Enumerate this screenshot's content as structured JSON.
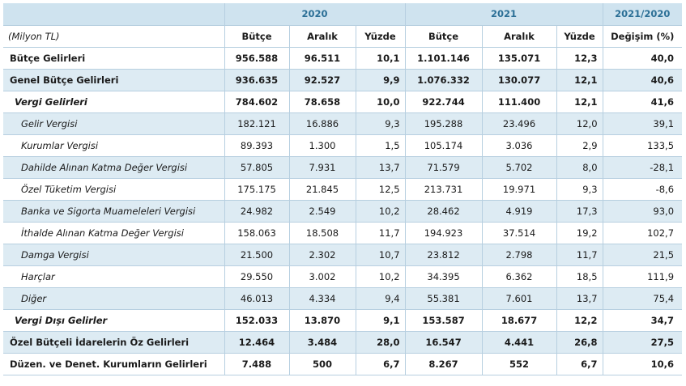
{
  "header": {
    "year_2020": "2020",
    "year_2021": "2021",
    "change_period": "2021/2020",
    "unit": "(Milyon TL)",
    "col_budget": "Bütçe",
    "col_december": "Aralık",
    "col_percent": "Yüzde",
    "col_change": "Değişim (%)"
  },
  "rows": [
    {
      "label": "Bütçe Gelirleri",
      "b20": "956.588",
      "a20": "96.511",
      "p20": "10,1",
      "b21": "1.101.146",
      "a21": "135.071",
      "p21": "12,3",
      "chg": "40,0"
    },
    {
      "label": "Genel Bütçe Gelirleri",
      "b20": "936.635",
      "a20": "92.527",
      "p20": "9,9",
      "b21": "1.076.332",
      "a21": "130.077",
      "p21": "12,1",
      "chg": "40,6"
    },
    {
      "label": "Vergi Gelirleri",
      "b20": "784.602",
      "a20": "78.658",
      "p20": "10,0",
      "b21": "922.744",
      "a21": "111.400",
      "p21": "12,1",
      "chg": "41,6"
    },
    {
      "label": "Gelir Vergisi",
      "b20": "182.121",
      "a20": "16.886",
      "p20": "9,3",
      "b21": "195.288",
      "a21": "23.496",
      "p21": "12,0",
      "chg": "39,1"
    },
    {
      "label": "Kurumlar Vergisi",
      "b20": "89.393",
      "a20": "1.300",
      "p20": "1,5",
      "b21": "105.174",
      "a21": "3.036",
      "p21": "2,9",
      "chg": "133,5"
    },
    {
      "label": "Dahilde Alınan Katma Değer Vergisi",
      "b20": "57.805",
      "a20": "7.931",
      "p20": "13,7",
      "b21": "71.579",
      "a21": "5.702",
      "p21": "8,0",
      "chg": "-28,1"
    },
    {
      "label": "Özel Tüketim Vergisi",
      "b20": "175.175",
      "a20": "21.845",
      "p20": "12,5",
      "b21": "213.731",
      "a21": "19.971",
      "p21": "9,3",
      "chg": "-8,6"
    },
    {
      "label": "Banka ve Sigorta Muameleleri Vergisi",
      "b20": "24.982",
      "a20": "2.549",
      "p20": "10,2",
      "b21": "28.462",
      "a21": "4.919",
      "p21": "17,3",
      "chg": "93,0"
    },
    {
      "label": "İthalde Alınan Katma Değer Vergisi",
      "b20": "158.063",
      "a20": "18.508",
      "p20": "11,7",
      "b21": "194.923",
      "a21": "37.514",
      "p21": "19,2",
      "chg": "102,7"
    },
    {
      "label": "Damga Vergisi",
      "b20": "21.500",
      "a20": "2.302",
      "p20": "10,7",
      "b21": "23.812",
      "a21": "2.798",
      "p21": "11,7",
      "chg": "21,5"
    },
    {
      "label": "Harçlar",
      "b20": "29.550",
      "a20": "3.002",
      "p20": "10,2",
      "b21": "34.395",
      "a21": "6.362",
      "p21": "18,5",
      "chg": "111,9"
    },
    {
      "label": "Diğer",
      "b20": "46.013",
      "a20": "4.334",
      "p20": "9,4",
      "b21": "55.381",
      "a21": "7.601",
      "p21": "13,7",
      "chg": "75,4"
    },
    {
      "label": "Vergi Dışı Gelirler",
      "b20": "152.033",
      "a20": "13.870",
      "p20": "9,1",
      "b21": "153.587",
      "a21": "18.677",
      "p21": "12,2",
      "chg": "34,7"
    },
    {
      "label": "Özel Bütçeli İdarelerin Öz Gelirleri",
      "b20": "12.464",
      "a20": "3.484",
      "p20": "28,0",
      "b21": "16.547",
      "a21": "4.441",
      "p21": "26,8",
      "chg": "27,5"
    },
    {
      "label": "Düzen. ve Denet. Kurumların Gelirleri",
      "b20": "7.488",
      "a20": "500",
      "p20": "6,7",
      "b21": "8.267",
      "a21": "552",
      "p21": "6,7",
      "chg": "10,6"
    }
  ],
  "colors": {
    "header_bg": "#cfe3ef",
    "header_text": "#2b6f96",
    "row_shade": "#ddebf3",
    "grid": "#b7cfe0"
  }
}
